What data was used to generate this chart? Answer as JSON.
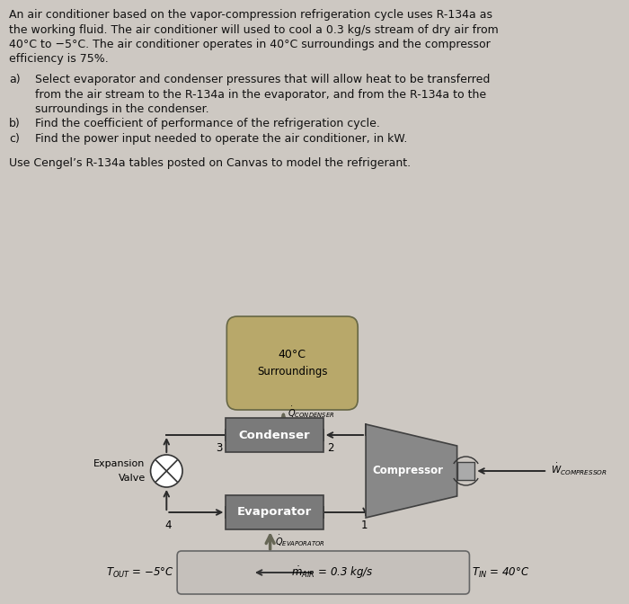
{
  "bg_color": "#cdc8c2",
  "text_color": "#1a1a1a",
  "box_color": "#7a7a7a",
  "surroundings_color": "#b8a870",
  "pipe_color": "#2a2a2a",
  "figw": 7.0,
  "figh": 6.72,
  "dpi": 100,
  "title_lines": [
    "An air conditioner based on the vapor-compression refrigeration cycle uses R-134a as",
    "the working fluid. The air conditioner will used to cool a 0.3 kg/s stream of dry air from",
    "40°C to −5°C. The air conditioner operates in 40°C surroundings and the compressor",
    "efficiency is 75%."
  ],
  "item_a_lines": [
    "Select evaporator and condenser pressures that will allow heat to be transferred",
    "from the air stream to the R-134a in the evaporator, and from the R-134a to the",
    "surroundings in the condenser."
  ],
  "item_b": "Find the coefficient of performance of the refrigeration cycle.",
  "item_c": "Find the power input needed to operate the air conditioner, in kW.",
  "use_text": "Use Cengel’s R-134a tables posted on Canvas to model the refrigerant.",
  "surr_label1": "40°C",
  "surr_label2": "Surroundings",
  "cond_label": "Condenser",
  "evap_label": "Evaporator",
  "comp_label": "Compressor",
  "q_cond_label": "$\\dot{Q}_{CONDENSER}$",
  "q_evap_label": "$\\dot{Q}_{EVAPORATOR}$",
  "w_comp_label": "$\\dot{W}_{COMPRESSOR}$",
  "m_air_label": "$\\dot{m}_{AIR}$ = 0.3 kg/s",
  "t_out_label": "$T_{OUT}$ = −5°C",
  "t_in_label": "$T_{IN}$ = 40°C",
  "label_1": "1",
  "label_2": "2",
  "label_3": "3",
  "label_4": "4"
}
